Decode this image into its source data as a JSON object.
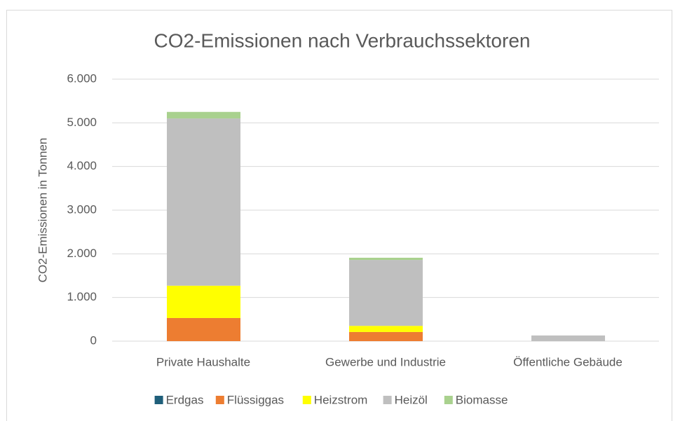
{
  "chart_data": {
    "type": "stacked_bar",
    "title": "CO2-Emissionen  nach Verbrauchssektoren",
    "y_axis_label": "CO2-Emissionen in Tonnen",
    "categories": [
      "Private Haushalte",
      "Gewerbe und Industrie",
      "Öffentliche Gebäude"
    ],
    "series": [
      {
        "name": "Erdgas",
        "color": "#1f5f7a",
        "values": [
          0,
          0,
          0
        ]
      },
      {
        "name": "Flüssiggas",
        "color": "#ed7d31",
        "values": [
          530,
          210,
          0
        ]
      },
      {
        "name": "Heizstrom",
        "color": "#ffff00",
        "values": [
          740,
          140,
          0
        ]
      },
      {
        "name": "Heizöl",
        "color": "#bfbfbf",
        "values": [
          3830,
          1510,
          130
        ]
      },
      {
        "name": "Biomasse",
        "color": "#a9d18e",
        "values": [
          150,
          50,
          0
        ]
      }
    ],
    "ylim": [
      0,
      6000
    ],
    "yticks": [
      0,
      {
        "value": 1000,
        "label": "1.000"
      },
      {
        "value": 2000,
        "label": "2.000"
      },
      {
        "value": 3000,
        "label": "3.000"
      },
      {
        "value": 4000,
        "label": "4.000"
      },
      {
        "value": 5000,
        "label": "5.000"
      },
      {
        "value": 6000,
        "label": "6.000"
      }
    ],
    "grid": true,
    "legend": "bottom"
  }
}
